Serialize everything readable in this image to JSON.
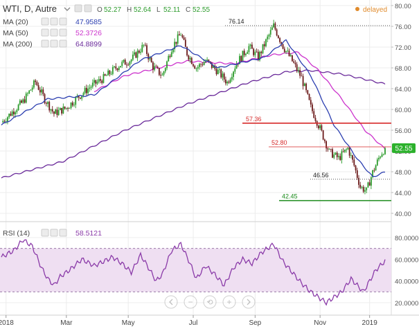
{
  "header": {
    "symbol": "WTI, D, Autre",
    "ohlc": [
      {
        "key": "O",
        "value": "52.27"
      },
      {
        "key": "H",
        "value": "52.64"
      },
      {
        "key": "L",
        "value": "52.11"
      },
      {
        "key": "C",
        "value": "52.55"
      }
    ],
    "status": "delayed"
  },
  "indicators": [
    {
      "label": "MA (20)",
      "value": "47.9585",
      "color": "#2c3fb0"
    },
    {
      "label": "MA (50)",
      "value": "52.3726",
      "color": "#cc33cc"
    },
    {
      "label": "MA (200)",
      "value": "64.8899",
      "color": "#6a2a9a"
    }
  ],
  "rsi": {
    "label": "RSI (14)",
    "value": "58.5121",
    "color": "#8a3aa8",
    "band_fill": "#efdff2"
  },
  "colors": {
    "up": "#2a9a2a",
    "down": "#6b1a1a",
    "resistance": "#d62828",
    "support": "#1a8a1a",
    "last_price_bg": "#2bb12b",
    "status": "#e08a2a",
    "grid": "#ececec"
  },
  "chart_data": [
    {
      "type": "candlestick",
      "title": "WTI, D, Autre",
      "x_tick_labels": [
        "2018",
        "Mar",
        "May",
        "Jul",
        "Sep",
        "Nov",
        "2019"
      ],
      "y_tick_labels": [
        "40.00",
        "44.00",
        "48.00",
        "52.00",
        "56.00",
        "60.00",
        "64.00",
        "68.00",
        "72.00",
        "76.00",
        "80.00"
      ],
      "ylim": [
        38.5,
        80.5
      ],
      "grid": true,
      "last_price": 52.55,
      "last_price_label": "52.55",
      "horizontal_levels": [
        {
          "label": "76.14",
          "value": 76.14,
          "style": "dotted",
          "kind": "high"
        },
        {
          "label": "57.36",
          "value": 57.36,
          "style": "solid",
          "kind": "resistance"
        },
        {
          "label": "52.80",
          "value": 52.8,
          "style": "thin",
          "kind": "resistance-minor"
        },
        {
          "label": "46.56",
          "value": 46.56,
          "style": "dotted",
          "kind": "support-minor"
        },
        {
          "label": "42.45",
          "value": 42.45,
          "style": "solid",
          "kind": "support"
        }
      ],
      "price_anchors": [
        [
          0,
          57.5
        ],
        [
          14,
          61.5
        ],
        [
          22,
          65.3
        ],
        [
          28,
          62.0
        ],
        [
          34,
          59.2
        ],
        [
          42,
          60.3
        ],
        [
          50,
          62.5
        ],
        [
          58,
          64.5
        ],
        [
          66,
          66.0
        ],
        [
          76,
          68.5
        ],
        [
          84,
          69.6
        ],
        [
          92,
          72.3
        ],
        [
          98,
          68.2
        ],
        [
          104,
          66.5
        ],
        [
          110,
          71.8
        ],
        [
          116,
          74.6
        ],
        [
          120,
          70.8
        ],
        [
          126,
          68.0
        ],
        [
          132,
          69.4
        ],
        [
          140,
          67.3
        ],
        [
          146,
          65.2
        ],
        [
          152,
          68.9
        ],
        [
          160,
          72.1
        ],
        [
          166,
          70.0
        ],
        [
          172,
          73.7
        ],
        [
          176,
          76.1
        ],
        [
          182,
          72.2
        ],
        [
          188,
          69.3
        ],
        [
          194,
          66.1
        ],
        [
          200,
          60.4
        ],
        [
          206,
          56.3
        ],
        [
          212,
          51.8
        ],
        [
          218,
          50.6
        ],
        [
          224,
          52.5
        ],
        [
          228,
          49.2
        ],
        [
          232,
          45.1
        ],
        [
          236,
          44.3
        ],
        [
          240,
          47.9
        ],
        [
          245,
          51.3
        ],
        [
          248,
          52.55
        ]
      ],
      "ma_series": [
        {
          "name": "MA (20)",
          "anchors": [
            [
              0,
              57.0
            ],
            [
              30,
              62.0
            ],
            [
              60,
              62.8
            ],
            [
              90,
              69.5
            ],
            [
              116,
              72.3
            ],
            [
              140,
              68.0
            ],
            [
              170,
              70.0
            ],
            [
              184,
              73.3
            ],
            [
              200,
              66.5
            ],
            [
              215,
              57.0
            ],
            [
              230,
              50.5
            ],
            [
              240,
              47.0
            ],
            [
              248,
              47.96
            ]
          ]
        },
        {
          "name": "MA (50)",
          "anchors": [
            [
              60,
              63.5
            ],
            [
              80,
              66.5
            ],
            [
              100,
              67.9
            ],
            [
              120,
              69.3
            ],
            [
              150,
              68.8
            ],
            [
              175,
              70.5
            ],
            [
              192,
              71.0
            ],
            [
              205,
              67.5
            ],
            [
              220,
              62.0
            ],
            [
              235,
              56.0
            ],
            [
              248,
              52.37
            ]
          ]
        },
        {
          "name": "MA (200)",
          "anchors": [
            [
              0,
              46.8
            ],
            [
              40,
              50.0
            ],
            [
              80,
              56.0
            ],
            [
              120,
              61.0
            ],
            [
              160,
              65.2
            ],
            [
              185,
              67.3
            ],
            [
              200,
              67.5
            ],
            [
              220,
              66.8
            ],
            [
              235,
              65.8
            ],
            [
              248,
              64.89
            ]
          ]
        }
      ]
    },
    {
      "type": "line",
      "title": "RSI (14)",
      "y_tick_labels": [
        "20.0000",
        "40.0000",
        "60.0000",
        "80.0000"
      ],
      "ylim": [
        12,
        84
      ],
      "overbought": 70,
      "oversold": 30,
      "anchors": [
        [
          0,
          62
        ],
        [
          8,
          68
        ],
        [
          14,
          78
        ],
        [
          20,
          72
        ],
        [
          26,
          52
        ],
        [
          30,
          42
        ],
        [
          34,
          36
        ],
        [
          38,
          44
        ],
        [
          44,
          50
        ],
        [
          52,
          60
        ],
        [
          60,
          54
        ],
        [
          66,
          58
        ],
        [
          72,
          62
        ],
        [
          78,
          56
        ],
        [
          84,
          48
        ],
        [
          90,
          64
        ],
        [
          96,
          50
        ],
        [
          100,
          40
        ],
        [
          104,
          46
        ],
        [
          110,
          68
        ],
        [
          116,
          74
        ],
        [
          122,
          56
        ],
        [
          126,
          42
        ],
        [
          132,
          54
        ],
        [
          138,
          46
        ],
        [
          144,
          36
        ],
        [
          150,
          52
        ],
        [
          156,
          60
        ],
        [
          162,
          56
        ],
        [
          168,
          66
        ],
        [
          176,
          74
        ],
        [
          182,
          58
        ],
        [
          188,
          48
        ],
        [
          194,
          38
        ],
        [
          200,
          30
        ],
        [
          206,
          24
        ],
        [
          210,
          20
        ],
        [
          214,
          24
        ],
        [
          220,
          30
        ],
        [
          226,
          42
        ],
        [
          230,
          36
        ],
        [
          234,
          30
        ],
        [
          238,
          40
        ],
        [
          242,
          50
        ],
        [
          248,
          58.51
        ]
      ]
    }
  ],
  "toolbar": {
    "zoom_out_label": "−",
    "zoom_in_label": "+",
    "reset_label": "⟲"
  }
}
